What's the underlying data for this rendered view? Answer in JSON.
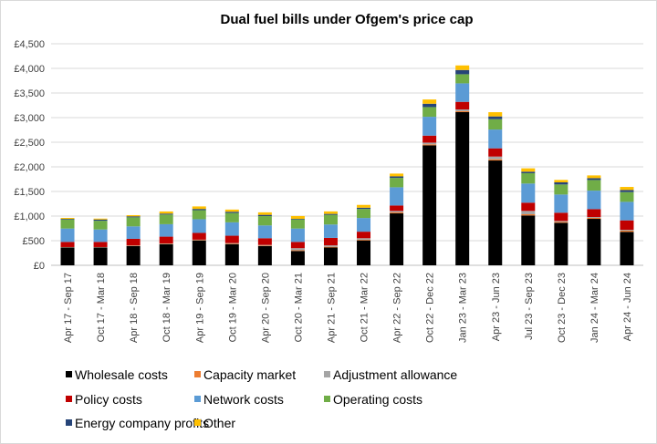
{
  "chart_data": {
    "type": "bar",
    "stacked": true,
    "title": "Dual fuel bills under Ofgem's price cap",
    "xlabel": "",
    "ylabel": "",
    "ylim": [
      0,
      4500
    ],
    "yticks": [
      "£0",
      "£500",
      "£1,000",
      "£1,500",
      "£2,000",
      "£2,500",
      "£3,000",
      "£3,500",
      "£4,000",
      "£4,500"
    ],
    "grid": true,
    "legend_position": "bottom",
    "categories": [
      "Apr 17 - Sep 17",
      "Oct 17 - Mar 18",
      "Apr 18 - Sep 18",
      "Oct 18 - Mar 19",
      "Apr 19 - Sep 19",
      "Oct 19 - Mar 20",
      "Apr 20 - Sep 20",
      "Oct 20 - Mar 21",
      "Apr 21 - Sep 21",
      "Oct 21 - Mar 22",
      "Apr 22 - Sep 22",
      "Oct 22 - Dec 22",
      "Jan 23 - Mar 23",
      "Apr 23 - Jun 23",
      "Jul 23 - Sep 23",
      "Oct 23 - Dec 23",
      "Jan 24 - Mar 24",
      "Apr 24 - Jun 24"
    ],
    "series": [
      {
        "name": "Wholesale costs",
        "color": "#000000",
        "values": [
          361,
          361,
          392,
          430,
          506,
          430,
          392,
          291,
          361,
          506,
          1055,
          2437,
          3111,
          2129,
          1012,
          864,
          944,
          679
        ]
      },
      {
        "name": "Capacity market",
        "color": "#ed7d31",
        "values": [
          5,
          5,
          8,
          10,
          10,
          12,
          12,
          15,
          15,
          15,
          20,
          20,
          20,
          25,
          25,
          20,
          20,
          25
        ]
      },
      {
        "name": "Adjustment allowance",
        "color": "#a5a5a5",
        "values": [
          5,
          5,
          5,
          5,
          5,
          10,
          10,
          42,
          29,
          29,
          29,
          35,
          35,
          55,
          68,
          17,
          17,
          18
        ]
      },
      {
        "name": "Policy costs",
        "color": "#c00000",
        "values": [
          104,
          104,
          133,
          137,
          137,
          149,
          136,
          127,
          152,
          133,
          111,
          142,
          154,
          167,
          167,
          167,
          160,
          191
        ]
      },
      {
        "name": "Network costs",
        "color": "#5b9bd5",
        "values": [
          272,
          253,
          253,
          253,
          278,
          272,
          260,
          272,
          272,
          278,
          370,
          383,
          376,
          382,
          389,
          370,
          376,
          376
        ]
      },
      {
        "name": "Operating costs",
        "color": "#70ad47",
        "values": [
          184,
          177,
          184,
          196,
          184,
          190,
          190,
          184,
          196,
          184,
          191,
          197,
          185,
          210,
          210,
          204,
          216,
          198
        ]
      },
      {
        "name": "Energy company profits",
        "color": "#264478",
        "values": [
          13,
          25,
          19,
          19,
          25,
          25,
          25,
          13,
          19,
          25,
          31,
          68,
          86,
          56,
          31,
          43,
          37,
          43
        ]
      },
      {
        "name": "Other",
        "color": "#ffc000",
        "values": [
          19,
          19,
          25,
          44,
          51,
          44,
          51,
          57,
          51,
          57,
          56,
          86,
          93,
          86,
          68,
          49,
          56,
          62
        ]
      }
    ]
  }
}
